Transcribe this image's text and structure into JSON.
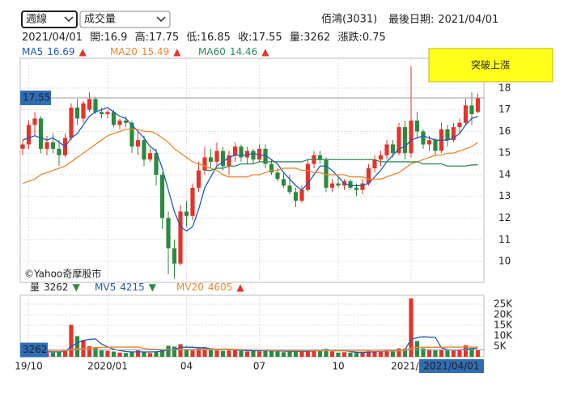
{
  "header": {
    "period": "週線",
    "indicator": "成交量",
    "stock": "佰鴻(3031)",
    "last_date_label": "最後日期:",
    "open_label": "開:",
    "high_label": "高:",
    "low_label": "低:",
    "close_label": "收:",
    "volume_label": "量:",
    "change_label": "漲跌:",
    "change": 0.75
  },
  "chart_data": [
    {
      "type": "candlestick",
      "annotation": "突破上漲",
      "watermark": "©Yahoo奇摩股市",
      "up_color": "#e5332a",
      "down_color": "#2b8a3e",
      "categories": [
        null,
        "19/10",
        null,
        null,
        null,
        null,
        null,
        null,
        null,
        null,
        null,
        null,
        null,
        null,
        "2020/01",
        null,
        null,
        null,
        null,
        null,
        null,
        null,
        null,
        null,
        null,
        null,
        null,
        "04",
        null,
        null,
        null,
        null,
        null,
        null,
        null,
        null,
        null,
        null,
        null,
        "07",
        null,
        null,
        null,
        null,
        null,
        null,
        null,
        null,
        null,
        null,
        null,
        null,
        "10",
        null,
        null,
        null,
        null,
        null,
        null,
        null,
        null,
        null,
        null,
        null,
        "2021/01",
        null,
        null,
        null,
        null,
        null,
        null,
        null,
        null,
        null,
        null,
        "2021/04/01"
      ],
      "open": [
        15.2,
        15.4,
        16.3,
        16.6,
        15.2,
        15.5,
        15.2,
        14.9,
        15.7,
        17.1,
        16.6,
        17.0,
        17.5,
        16.9,
        16.8,
        16.9,
        16.3,
        16.5,
        16.4,
        15.3,
        15.6,
        14.7,
        15.0,
        14.0,
        12.0,
        10.6,
        9.9,
        12.3,
        12.1,
        13.4,
        14.2,
        14.8,
        14.6,
        15.1,
        14.4,
        14.9,
        15.3,
        14.8,
        15.1,
        14.7,
        15.2,
        14.5,
        14.1,
        13.8,
        13.5,
        13.2,
        12.8,
        13.3,
        14.5,
        14.9,
        14.7,
        13.4,
        13.6,
        13.5,
        13.7,
        13.4,
        13.3,
        13.6,
        14.3,
        14.7,
        14.9,
        15.4,
        15.0,
        16.2,
        15.0,
        16.5,
        16.0,
        15.4,
        15.6,
        15.1,
        16.1,
        15.6,
        16.2,
        16.4,
        17.2,
        16.9
      ],
      "high": [
        15.6,
        16.5,
        16.9,
        16.7,
        15.8,
        15.9,
        15.6,
        15.9,
        17.3,
        17.5,
        17.4,
        17.8,
        17.6,
        17.1,
        17.0,
        17.0,
        16.6,
        16.7,
        16.5,
        16.0,
        15.8,
        15.2,
        15.2,
        14.1,
        12.3,
        11.0,
        12.6,
        12.8,
        13.6,
        14.6,
        15.3,
        15.2,
        15.5,
        15.3,
        15.1,
        15.5,
        15.4,
        15.3,
        15.2,
        15.4,
        15.4,
        14.7,
        14.3,
        14.1,
        14.0,
        13.4,
        13.5,
        14.7,
        15.1,
        15.1,
        14.8,
        13.8,
        13.9,
        13.8,
        13.8,
        13.6,
        13.8,
        14.5,
        14.9,
        15.1,
        15.6,
        15.6,
        16.4,
        16.5,
        19.0,
        16.9,
        16.1,
        15.8,
        15.7,
        16.4,
        16.3,
        16.4,
        16.6,
        17.5,
        17.8,
        17.75
      ],
      "low": [
        14.9,
        15.2,
        15.8,
        15.0,
        14.9,
        15.0,
        14.4,
        14.8,
        15.6,
        16.3,
        16.4,
        16.9,
        16.8,
        16.6,
        16.6,
        16.2,
        16.1,
        16.2,
        15.0,
        14.9,
        14.4,
        14.6,
        13.5,
        11.5,
        9.4,
        9.2,
        9.8,
        11.6,
        11.9,
        13.2,
        14.0,
        14.3,
        14.4,
        14.2,
        14.0,
        14.6,
        14.6,
        14.5,
        14.5,
        14.6,
        14.3,
        14.0,
        13.7,
        13.4,
        13.1,
        12.5,
        12.7,
        13.2,
        14.3,
        14.5,
        13.2,
        13.2,
        13.4,
        13.3,
        13.3,
        13.0,
        13.1,
        13.5,
        14.1,
        14.4,
        14.7,
        14.8,
        14.9,
        14.7,
        14.8,
        15.7,
        15.2,
        15.1,
        14.9,
        15.0,
        15.3,
        15.5,
        15.9,
        16.3,
        16.3,
        16.85
      ],
      "close": [
        15.4,
        16.3,
        16.6,
        15.2,
        15.5,
        15.2,
        14.9,
        15.7,
        17.1,
        16.6,
        17.3,
        17.5,
        16.9,
        16.8,
        16.9,
        16.3,
        16.5,
        16.4,
        15.3,
        15.6,
        14.7,
        15.0,
        14.0,
        12.0,
        10.6,
        9.9,
        12.3,
        12.1,
        13.4,
        14.2,
        14.8,
        14.6,
        15.1,
        14.4,
        14.9,
        15.3,
        14.8,
        15.1,
        14.7,
        15.2,
        14.5,
        14.1,
        13.8,
        13.5,
        13.2,
        12.8,
        13.3,
        14.5,
        14.9,
        14.7,
        13.4,
        13.6,
        13.5,
        13.7,
        13.4,
        13.3,
        13.6,
        14.3,
        14.7,
        14.9,
        15.4,
        15.0,
        16.2,
        15.0,
        16.5,
        16.0,
        15.4,
        15.6,
        15.1,
        16.1,
        15.6,
        16.2,
        16.4,
        17.2,
        16.8,
        17.55
      ],
      "series": [
        {
          "name": "MA5",
          "color": "#1f5bb8",
          "arrow": "▲",
          "values": [
            15.6,
            15.7,
            15.8,
            15.7,
            15.6,
            15.7,
            15.5,
            15.3,
            15.7,
            15.9,
            16.3,
            16.7,
            16.9,
            17.0,
            17.1,
            16.9,
            16.7,
            16.6,
            16.3,
            16.0,
            15.7,
            15.3,
            15.1,
            14.3,
            13.3,
            12.3,
            11.6,
            11.4,
            11.6,
            12.4,
            13.4,
            13.9,
            14.4,
            14.6,
            14.8,
            14.9,
            14.9,
            14.9,
            15.0,
            14.9,
            14.9,
            14.7,
            14.5,
            14.1,
            13.8,
            13.5,
            13.3,
            13.6,
            14.0,
            14.4,
            14.4,
            14.2,
            13.9,
            13.6,
            13.5,
            13.5,
            13.5,
            13.6,
            13.9,
            14.2,
            14.6,
            14.9,
            15.2,
            15.3,
            15.6,
            15.7,
            15.8,
            15.7,
            15.6,
            15.6,
            15.6,
            15.7,
            15.9,
            16.3,
            16.6,
            16.69
          ]
        },
        {
          "name": "MA20",
          "color": "#f0862a",
          "arrow": "▲",
          "values": [
            13.6,
            13.7,
            13.8,
            14.0,
            14.1,
            14.2,
            14.3,
            14.4,
            14.6,
            14.8,
            15.0,
            15.2,
            15.4,
            15.6,
            15.8,
            15.9,
            16.0,
            16.1,
            16.1,
            16.1,
            16.0,
            16.0,
            15.9,
            15.7,
            15.5,
            15.2,
            15.0,
            14.8,
            14.6,
            14.5,
            14.4,
            14.3,
            14.2,
            14.0,
            13.9,
            13.9,
            13.9,
            13.9,
            14.0,
            14.0,
            14.1,
            14.2,
            14.2,
            14.3,
            14.3,
            14.3,
            14.2,
            14.2,
            14.1,
            14.1,
            14.0,
            14.0,
            14.0,
            14.0,
            13.9,
            13.9,
            13.9,
            13.8,
            13.8,
            13.8,
            13.9,
            14.0,
            14.1,
            14.3,
            14.5,
            14.6,
            14.7,
            14.8,
            14.9,
            14.9,
            15.0,
            15.0,
            15.1,
            15.2,
            15.3,
            15.49
          ]
        },
        {
          "name": "MA60",
          "color": "#2e8b57",
          "arrow": "▲",
          "values": [
            null,
            null,
            null,
            null,
            null,
            null,
            null,
            null,
            null,
            null,
            null,
            null,
            null,
            null,
            null,
            null,
            null,
            null,
            null,
            null,
            null,
            null,
            null,
            null,
            null,
            null,
            null,
            null,
            null,
            null,
            14.2,
            14.2,
            14.3,
            14.3,
            14.4,
            14.4,
            14.5,
            14.5,
            14.5,
            14.6,
            14.6,
            14.6,
            14.6,
            14.6,
            14.6,
            14.6,
            14.6,
            14.7,
            14.7,
            14.7,
            14.7,
            14.7,
            14.7,
            14.7,
            14.7,
            14.7,
            14.7,
            14.7,
            14.7,
            14.6,
            14.6,
            14.6,
            14.6,
            14.6,
            14.6,
            14.6,
            14.5,
            14.5,
            14.5,
            14.5,
            14.4,
            14.4,
            14.4,
            14.4,
            14.45,
            14.46
          ]
        }
      ],
      "ylim": [
        9.03,
        19.38
      ],
      "yticks": [
        10,
        11,
        12,
        13,
        14,
        15,
        16,
        17,
        18
      ],
      "grid": true
    },
    {
      "type": "bar",
      "name": "量",
      "arrow": "▼",
      "values": [
        2000,
        2500,
        3000,
        2200,
        1800,
        2000,
        2400,
        3500,
        15200,
        9800,
        8000,
        5000,
        4500,
        3000,
        2800,
        2500,
        2000,
        1800,
        2500,
        3000,
        2200,
        1800,
        2500,
        3500,
        5200,
        4800,
        6000,
        3500,
        3000,
        4000,
        4500,
        3500,
        3000,
        2800,
        3000,
        3500,
        2800,
        2500,
        3000,
        2600,
        2800,
        3200,
        2500,
        2200,
        2500,
        3000,
        2800,
        2500,
        3500,
        3000,
        3800,
        2600,
        2000,
        2200,
        2000,
        1800,
        2200,
        3000,
        2800,
        2500,
        3500,
        2500,
        4000,
        3800,
        27800,
        7500,
        4000,
        3500,
        3000,
        3200,
        3000,
        2800,
        3500,
        5500,
        4200,
        3262
      ],
      "series": [
        {
          "name": "MV5",
          "color": "#1f5bb8",
          "arrow": "▼",
          "values": [
            2500,
            2500,
            2600,
            2500,
            2300,
            2300,
            2400,
            2500,
            4900,
            6600,
            7800,
            8300,
            8500,
            6100,
            4700,
            3600,
            3000,
            2500,
            2300,
            2400,
            2300,
            2300,
            2400,
            2700,
            3200,
            3600,
            4400,
            4600,
            4500,
            4300,
            4300,
            3900,
            3600,
            3600,
            3400,
            3200,
            3100,
            2900,
            2900,
            2900,
            2900,
            2800,
            2800,
            2700,
            2600,
            2600,
            2600,
            2600,
            2800,
            3000,
            3100,
            3100,
            3000,
            2900,
            2500,
            2100,
            2000,
            2200,
            2400,
            2500,
            2800,
            2900,
            3100,
            3300,
            8300,
            9100,
            9500,
            9300,
            9200,
            4200,
            3400,
            3100,
            3200,
            3600,
            3800,
            4215
          ]
        },
        {
          "name": "MV20",
          "color": "#f0862a",
          "arrow": "▲",
          "values": [
            2800,
            2800,
            2800,
            2800,
            2800,
            2700,
            2700,
            2800,
            3400,
            3800,
            4100,
            4200,
            4300,
            4400,
            4500,
            4600,
            4600,
            4600,
            4600,
            4600,
            4000,
            3700,
            3600,
            3500,
            3300,
            3300,
            3500,
            3500,
            3500,
            3600,
            3700,
            3700,
            3700,
            3700,
            3700,
            3600,
            3500,
            3400,
            3300,
            3200,
            3100,
            3000,
            3000,
            3000,
            2900,
            2900,
            2900,
            2900,
            2900,
            2900,
            2900,
            2900,
            2800,
            2800,
            2800,
            2700,
            2700,
            2700,
            2700,
            2700,
            2800,
            2800,
            2800,
            2900,
            4200,
            4400,
            4500,
            4500,
            4500,
            4500,
            4600,
            4600,
            4600,
            4600,
            4600,
            4605
          ]
        }
      ],
      "ylim": [
        0,
        29230
      ],
      "yticks": [
        {
          "value": 5000,
          "label": "5K"
        },
        {
          "value": 10000,
          "label": "10K"
        },
        {
          "value": 15000,
          "label": "15K"
        },
        {
          "value": 20000,
          "label": "20K"
        },
        {
          "value": 25000,
          "label": "25K"
        }
      ],
      "grid": true
    }
  ]
}
